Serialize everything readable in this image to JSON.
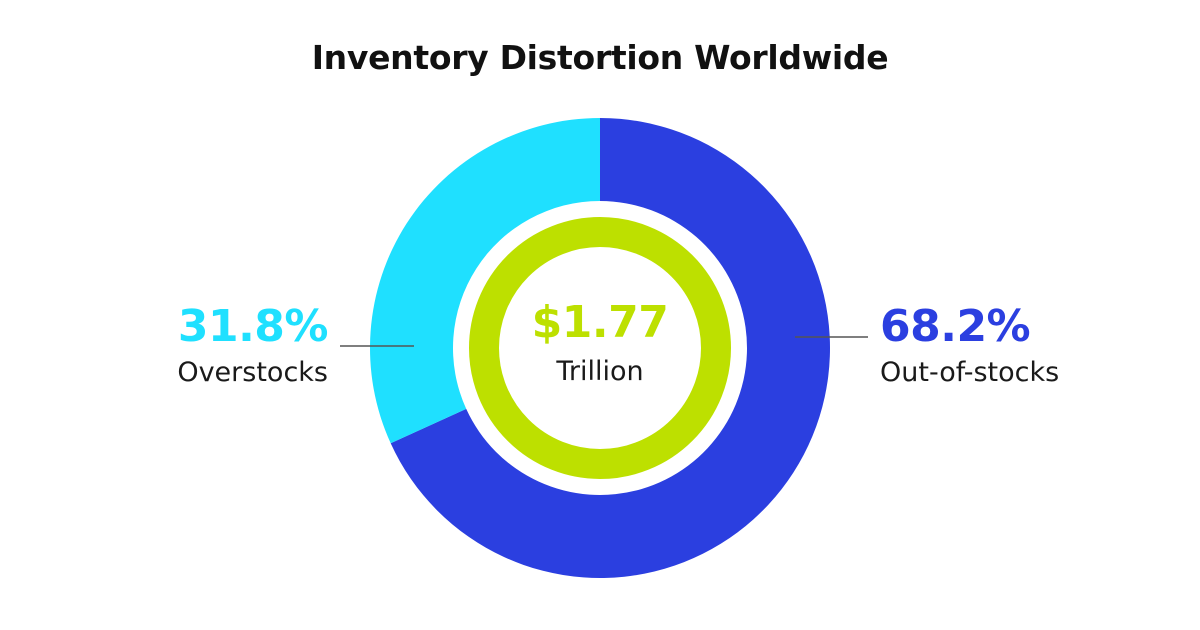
{
  "chart_data": {
    "type": "pie",
    "title": "Inventory Distortion Worldwide",
    "center": {
      "value": "$1.77",
      "unit": "Trillion",
      "color": "#bde000"
    },
    "slices": [
      {
        "name": "Out-of-stocks",
        "value": 68.2,
        "label": "68.2%",
        "color": "#2b3fe0"
      },
      {
        "name": "Overstocks",
        "value": 31.8,
        "label": "31.8%",
        "color": "#1fe0ff"
      }
    ],
    "background": "#ffffff"
  }
}
